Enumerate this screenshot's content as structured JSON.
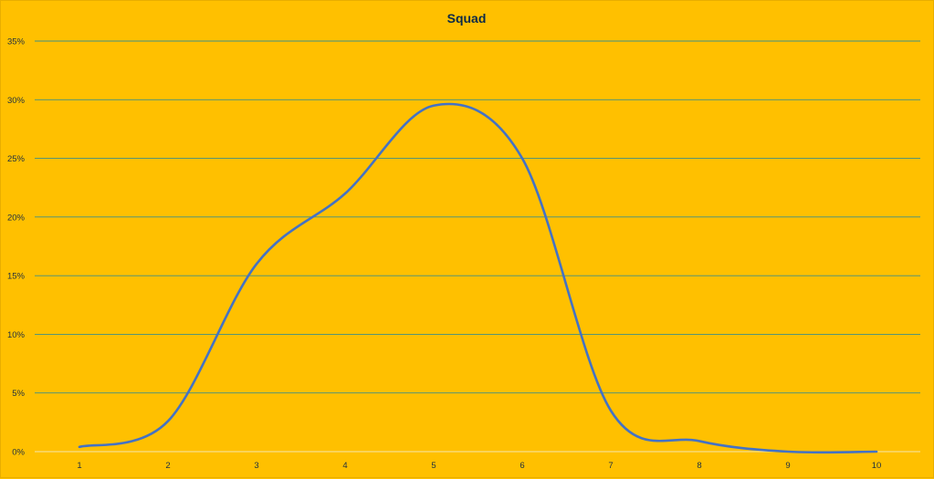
{
  "chart_data": {
    "type": "line",
    "title": "Squad",
    "xlabel": "",
    "ylabel": "",
    "x": [
      1,
      2,
      3,
      4,
      5,
      6,
      7,
      8,
      9,
      10
    ],
    "series": [
      {
        "values": [
          0.4,
          2.6,
          16.0,
          22.0,
          29.5,
          25.0,
          3.5,
          0.9,
          0.0,
          0.0
        ]
      }
    ],
    "ylim": [
      0,
      35
    ],
    "yticks": [
      0,
      5,
      10,
      15,
      20,
      25,
      30,
      35
    ],
    "ytick_labels": [
      "0%",
      "5%",
      "10%",
      "15%",
      "20%",
      "25%",
      "30%",
      "35%"
    ],
    "xtick_labels": [
      "1",
      "2",
      "3",
      "4",
      "5",
      "6",
      "7",
      "8",
      "9",
      "10"
    ],
    "smooth": true,
    "grid": true,
    "legend": "none",
    "colors": {
      "background": "#FFC000",
      "series": "#4472C4",
      "grid": "#3F8F86",
      "text": "#0B2A48"
    }
  }
}
